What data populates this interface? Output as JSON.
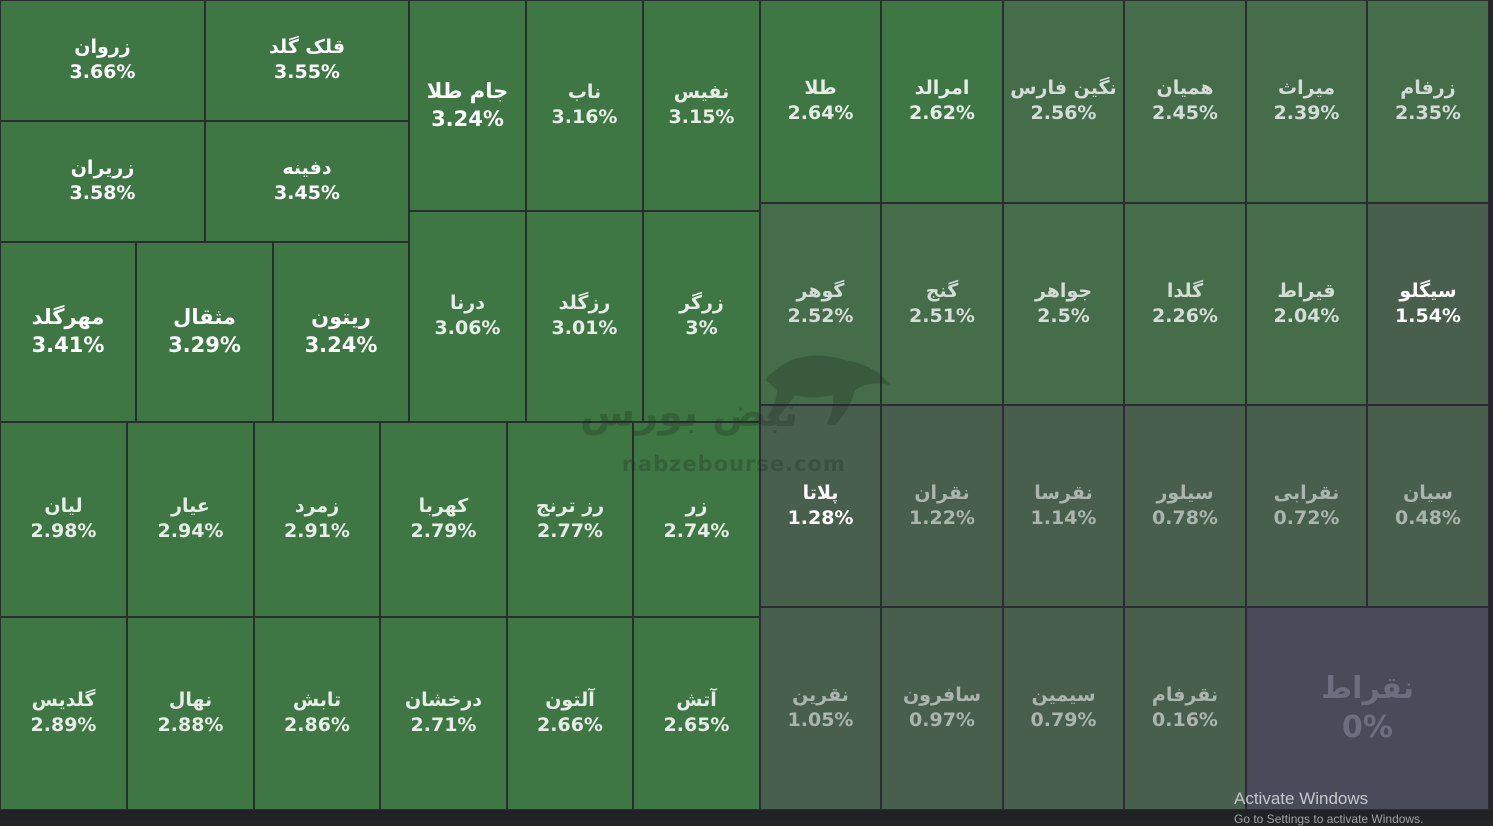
{
  "chart_data": {
    "type": "treemap",
    "colors": {
      "strong": "#3e7743",
      "mid": "#456d4a",
      "weak": "#475f4c",
      "neutral": "#4a4b5a",
      "border": "#2a2e31",
      "background": "#24262b"
    },
    "items": [
      {
        "name": "زروان",
        "change": "3.66%"
      },
      {
        "name": "قلک گلد",
        "change": "3.55%"
      },
      {
        "name": "زریران",
        "change": "3.58%"
      },
      {
        "name": "دفینه",
        "change": "3.45%"
      },
      {
        "name": "مهرگلد",
        "change": "3.41%"
      },
      {
        "name": "مثقال",
        "change": "3.29%"
      },
      {
        "name": "ریتون",
        "change": "3.24%"
      },
      {
        "name": "جام طلا",
        "change": "3.24%"
      },
      {
        "name": "ناب",
        "change": "3.16%"
      },
      {
        "name": "نفیس",
        "change": "3.15%"
      },
      {
        "name": "درنا",
        "change": "3.06%"
      },
      {
        "name": "رزگلد",
        "change": "3.01%"
      },
      {
        "name": "زرگر",
        "change": "3%"
      },
      {
        "name": "لیان",
        "change": "2.98%"
      },
      {
        "name": "عیار",
        "change": "2.94%"
      },
      {
        "name": "زمرد",
        "change": "2.91%"
      },
      {
        "name": "کهربا",
        "change": "2.79%"
      },
      {
        "name": "رز ترنج",
        "change": "2.77%"
      },
      {
        "name": "زر",
        "change": "2.74%"
      },
      {
        "name": "گلدیس",
        "change": "2.89%"
      },
      {
        "name": "نهال",
        "change": "2.88%"
      },
      {
        "name": "تابش",
        "change": "2.86%"
      },
      {
        "name": "درخشان",
        "change": "2.71%"
      },
      {
        "name": "آلتون",
        "change": "2.66%"
      },
      {
        "name": "آتش",
        "change": "2.65%"
      },
      {
        "name": "طلا",
        "change": "2.64%"
      },
      {
        "name": "امرالد",
        "change": "2.62%"
      },
      {
        "name": "نگین فارس",
        "change": "2.56%"
      },
      {
        "name": "همیان",
        "change": "2.45%"
      },
      {
        "name": "میراث",
        "change": "2.39%"
      },
      {
        "name": "زرفام",
        "change": "2.35%"
      },
      {
        "name": "گوهر",
        "change": "2.52%"
      },
      {
        "name": "گنج",
        "change": "2.51%"
      },
      {
        "name": "جواهر",
        "change": "2.5%"
      },
      {
        "name": "گلدا",
        "change": "2.26%"
      },
      {
        "name": "قیراط",
        "change": "2.04%"
      },
      {
        "name": "سیگلو",
        "change": "1.54%"
      },
      {
        "name": "پلاتا",
        "change": "1.28%"
      },
      {
        "name": "نقران",
        "change": "1.22%"
      },
      {
        "name": "نقرسا",
        "change": "1.14%"
      },
      {
        "name": "سیلور",
        "change": "0.78%"
      },
      {
        "name": "نقرابی",
        "change": "0.72%"
      },
      {
        "name": "سیان",
        "change": "0.48%"
      },
      {
        "name": "نقرین",
        "change": "1.05%"
      },
      {
        "name": "سافرون",
        "change": "0.97%"
      },
      {
        "name": "سیمین",
        "change": "0.79%"
      },
      {
        "name": "نقرفام",
        "change": "0.16%"
      },
      {
        "name": "نقراط",
        "change": "0%"
      }
    ]
  },
  "watermark": {
    "logo": "نبض بورس",
    "url": "nabzebourse.com"
  },
  "system_overlay": {
    "activate": "Activate Windows",
    "activate_sub": "Go to Settings to activate Windows."
  }
}
